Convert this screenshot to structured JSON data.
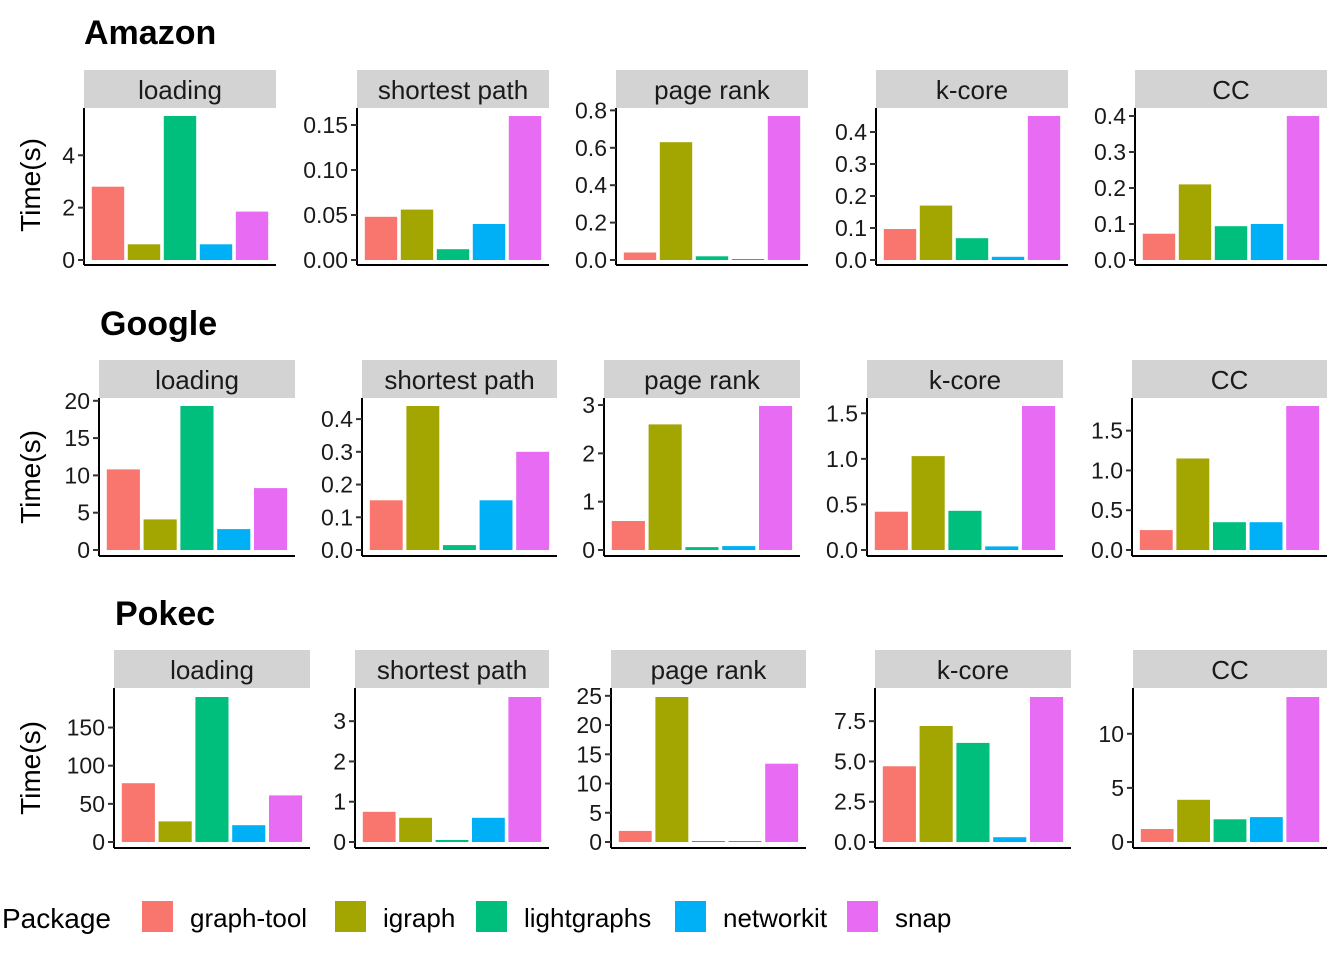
{
  "legend": {
    "title": "Package",
    "items": [
      {
        "name": "graph-tool",
        "color": "#F8766D"
      },
      {
        "name": "igraph",
        "color": "#A3A500"
      },
      {
        "name": "lightgraphs",
        "color": "#00BF7D"
      },
      {
        "name": "networkit",
        "color": "#00B0F6"
      },
      {
        "name": "snap",
        "color": "#E76BF3"
      }
    ]
  },
  "chart_data": [
    {
      "title": "Amazon",
      "ylabel": "Time(s)",
      "type": "bar",
      "facets": [
        {
          "label": "loading",
          "ylim": [
            0,
            5.5
          ],
          "ticks": [
            "0",
            "2",
            "4"
          ],
          "tick_values": [
            0,
            2,
            4
          ],
          "series": [
            {
              "name": "graph-tool",
              "value": 2.8
            },
            {
              "name": "igraph",
              "value": 0.6
            },
            {
              "name": "lightgraphs",
              "value": 5.5
            },
            {
              "name": "networkit",
              "value": 0.6
            },
            {
              "name": "snap",
              "value": 1.85
            }
          ]
        },
        {
          "label": "shortest path",
          "ylim": [
            0,
            0.16
          ],
          "ticks": [
            "0.00",
            "0.05",
            "0.10",
            "0.15"
          ],
          "tick_values": [
            0,
            0.05,
            0.1,
            0.15
          ],
          "series": [
            {
              "name": "graph-tool",
              "value": 0.048
            },
            {
              "name": "igraph",
              "value": 0.056
            },
            {
              "name": "lightgraphs",
              "value": 0.012
            },
            {
              "name": "networkit",
              "value": 0.04
            },
            {
              "name": "snap",
              "value": 0.16
            }
          ]
        },
        {
          "label": "page rank",
          "ylim": [
            0,
            0.77
          ],
          "ticks": [
            "0.0",
            "0.2",
            "0.4",
            "0.6",
            "0.8"
          ],
          "tick_values": [
            0,
            0.2,
            0.4,
            0.6,
            0.8
          ],
          "series": [
            {
              "name": "graph-tool",
              "value": 0.04
            },
            {
              "name": "igraph",
              "value": 0.63
            },
            {
              "name": "lightgraphs",
              "value": 0.02
            },
            {
              "name": "networkit",
              "value": 0.005
            },
            {
              "name": "snap",
              "value": 0.77
            }
          ]
        },
        {
          "label": "k-core",
          "ylim": [
            0,
            0.45
          ],
          "ticks": [
            "0.0",
            "0.1",
            "0.2",
            "0.3",
            "0.4"
          ],
          "tick_values": [
            0,
            0.1,
            0.2,
            0.3,
            0.4
          ],
          "series": [
            {
              "name": "graph-tool",
              "value": 0.097
            },
            {
              "name": "igraph",
              "value": 0.17
            },
            {
              "name": "lightgraphs",
              "value": 0.068
            },
            {
              "name": "networkit",
              "value": 0.01
            },
            {
              "name": "snap",
              "value": 0.45
            }
          ]
        },
        {
          "label": "CC",
          "ylim": [
            0,
            0.4
          ],
          "ticks": [
            "0.0",
            "0.1",
            "0.2",
            "0.3",
            "0.4"
          ],
          "tick_values": [
            0,
            0.1,
            0.2,
            0.3,
            0.4
          ],
          "series": [
            {
              "name": "graph-tool",
              "value": 0.073
            },
            {
              "name": "igraph",
              "value": 0.21
            },
            {
              "name": "lightgraphs",
              "value": 0.094
            },
            {
              "name": "networkit",
              "value": 0.1
            },
            {
              "name": "snap",
              "value": 0.4
            }
          ]
        }
      ]
    },
    {
      "title": "Google",
      "ylabel": "Time(s)",
      "type": "bar",
      "facets": [
        {
          "label": "loading",
          "ylim": [
            0,
            19.3
          ],
          "ticks": [
            "0",
            "5",
            "10",
            "15",
            "20"
          ],
          "tick_values": [
            0,
            5,
            10,
            15,
            20
          ],
          "series": [
            {
              "name": "graph-tool",
              "value": 10.8
            },
            {
              "name": "igraph",
              "value": 4.1
            },
            {
              "name": "lightgraphs",
              "value": 19.3
            },
            {
              "name": "networkit",
              "value": 2.8
            },
            {
              "name": "snap",
              "value": 8.3
            }
          ]
        },
        {
          "label": "shortest path",
          "ylim": [
            0,
            0.44
          ],
          "ticks": [
            "0.0",
            "0.1",
            "0.2",
            "0.3",
            "0.4"
          ],
          "tick_values": [
            0,
            0.1,
            0.2,
            0.3,
            0.4
          ],
          "series": [
            {
              "name": "graph-tool",
              "value": 0.152
            },
            {
              "name": "igraph",
              "value": 0.44
            },
            {
              "name": "lightgraphs",
              "value": 0.015
            },
            {
              "name": "networkit",
              "value": 0.152
            },
            {
              "name": "snap",
              "value": 0.3
            }
          ]
        },
        {
          "label": "page rank",
          "ylim": [
            0,
            2.98
          ],
          "ticks": [
            "0",
            "1",
            "2",
            "3"
          ],
          "tick_values": [
            0,
            1,
            2,
            3
          ],
          "series": [
            {
              "name": "graph-tool",
              "value": 0.6
            },
            {
              "name": "igraph",
              "value": 2.6
            },
            {
              "name": "lightgraphs",
              "value": 0.06
            },
            {
              "name": "networkit",
              "value": 0.08
            },
            {
              "name": "snap",
              "value": 2.98
            }
          ]
        },
        {
          "label": "k-core",
          "ylim": [
            0,
            1.58
          ],
          "ticks": [
            "0.0",
            "0.5",
            "1.0",
            "1.5"
          ],
          "tick_values": [
            0,
            0.5,
            1.0,
            1.5
          ],
          "series": [
            {
              "name": "graph-tool",
              "value": 0.42
            },
            {
              "name": "igraph",
              "value": 1.03
            },
            {
              "name": "lightgraphs",
              "value": 0.43
            },
            {
              "name": "networkit",
              "value": 0.04
            },
            {
              "name": "snap",
              "value": 1.58
            }
          ]
        },
        {
          "label": "CC",
          "ylim": [
            0,
            1.81
          ],
          "ticks": [
            "0.0",
            "0.5",
            "1.0",
            "1.5"
          ],
          "tick_values": [
            0,
            0.5,
            1.0,
            1.5
          ],
          "series": [
            {
              "name": "graph-tool",
              "value": 0.25
            },
            {
              "name": "igraph",
              "value": 1.15
            },
            {
              "name": "lightgraphs",
              "value": 0.35
            },
            {
              "name": "networkit",
              "value": 0.35
            },
            {
              "name": "snap",
              "value": 1.81
            }
          ]
        }
      ]
    },
    {
      "title": "Pokec",
      "ylabel": "Time(s)",
      "type": "bar",
      "facets": [
        {
          "label": "loading",
          "ylim": [
            0,
            190
          ],
          "ticks": [
            "0",
            "50",
            "100",
            "150"
          ],
          "tick_values": [
            0,
            50,
            100,
            150
          ],
          "series": [
            {
              "name": "graph-tool",
              "value": 77
            },
            {
              "name": "igraph",
              "value": 27
            },
            {
              "name": "lightgraphs",
              "value": 190
            },
            {
              "name": "networkit",
              "value": 22
            },
            {
              "name": "snap",
              "value": 61
            }
          ]
        },
        {
          "label": "shortest path",
          "ylim": [
            0,
            3.6
          ],
          "ticks": [
            "0",
            "1",
            "2",
            "3"
          ],
          "tick_values": [
            0,
            1,
            2,
            3
          ],
          "series": [
            {
              "name": "graph-tool",
              "value": 0.75
            },
            {
              "name": "igraph",
              "value": 0.6
            },
            {
              "name": "lightgraphs",
              "value": 0.05
            },
            {
              "name": "networkit",
              "value": 0.6
            },
            {
              "name": "snap",
              "value": 3.6
            }
          ]
        },
        {
          "label": "page rank",
          "ylim": [
            0,
            24.8
          ],
          "ticks": [
            "0",
            "5",
            "10",
            "15",
            "20",
            "25"
          ],
          "tick_values": [
            0,
            5,
            10,
            15,
            20,
            25
          ],
          "series": [
            {
              "name": "graph-tool",
              "value": 1.9
            },
            {
              "name": "igraph",
              "value": 24.8
            },
            {
              "name": "lightgraphs",
              "value": 0.15
            },
            {
              "name": "networkit",
              "value": 0.15
            },
            {
              "name": "snap",
              "value": 13.4
            }
          ]
        },
        {
          "label": "k-core",
          "ylim": [
            0,
            9.0
          ],
          "ticks": [
            "0.0",
            "2.5",
            "5.0",
            "7.5"
          ],
          "tick_values": [
            0,
            2.5,
            5.0,
            7.5
          ],
          "series": [
            {
              "name": "graph-tool",
              "value": 4.7
            },
            {
              "name": "igraph",
              "value": 7.2
            },
            {
              "name": "lightgraphs",
              "value": 6.15
            },
            {
              "name": "networkit",
              "value": 0.3
            },
            {
              "name": "snap",
              "value": 9.0
            }
          ]
        },
        {
          "label": "CC",
          "ylim": [
            0,
            13.4
          ],
          "ticks": [
            "0",
            "5",
            "10"
          ],
          "tick_values": [
            0,
            5,
            10
          ],
          "series": [
            {
              "name": "graph-tool",
              "value": 1.2
            },
            {
              "name": "igraph",
              "value": 3.9
            },
            {
              "name": "lightgraphs",
              "value": 2.1
            },
            {
              "name": "networkit",
              "value": 2.3
            },
            {
              "name": "snap",
              "value": 13.4
            }
          ]
        }
      ]
    }
  ]
}
